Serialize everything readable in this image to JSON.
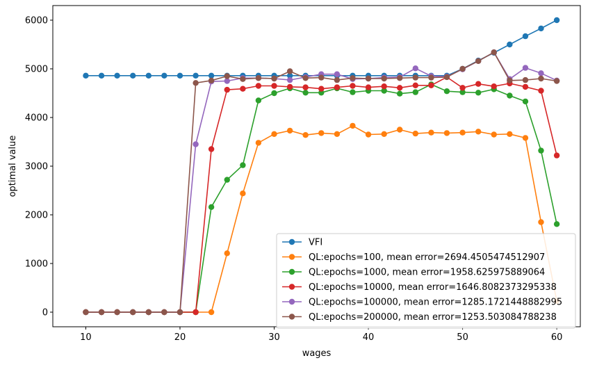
{
  "chart_data": {
    "type": "line",
    "xlabel": "wages",
    "ylabel": "optimal value",
    "xlim": [
      6.5,
      62.5
    ],
    "ylim": [
      -300,
      6300
    ],
    "xticks": [
      10,
      20,
      30,
      40,
      50,
      60
    ],
    "yticks": [
      0,
      1000,
      2000,
      3000,
      4000,
      5000,
      6000
    ],
    "grid": false,
    "legend_position": "lower-right",
    "x": [
      10,
      11.67,
      13.33,
      15,
      16.67,
      18.33,
      20,
      21.67,
      23.33,
      25,
      26.67,
      28.33,
      30,
      31.67,
      33.33,
      35,
      36.67,
      38.33,
      40,
      41.67,
      43.33,
      45,
      46.67,
      48.33,
      50,
      51.67,
      53.33,
      55,
      56.67,
      58.33,
      60
    ],
    "series": [
      {
        "name": "VFI",
        "color": "#1f77b4",
        "values": [
          4860,
          4860,
          4860,
          4860,
          4860,
          4860,
          4860,
          4860,
          4860,
          4860,
          4860,
          4860,
          4860,
          4860,
          4860,
          4860,
          4860,
          4860,
          4860,
          4860,
          4860,
          4860,
          4860,
          4860,
          5000,
          5170,
          5330,
          5500,
          5670,
          5830,
          6000
        ]
      },
      {
        "name": "QL:epochs=100, mean error=2694.4505474512907",
        "color": "#ff7f0e",
        "values": [
          0,
          0,
          0,
          0,
          0,
          0,
          0,
          0,
          0,
          1210,
          2440,
          3480,
          3660,
          3730,
          3640,
          3680,
          3660,
          3830,
          3650,
          3660,
          3750,
          3670,
          3690,
          3680,
          3690,
          3710,
          3650,
          3660,
          3580,
          1850,
          230
        ]
      },
      {
        "name": "QL:epochs=1000, mean error=1958.625975889064",
        "color": "#2ca02c",
        "values": [
          0,
          0,
          0,
          0,
          0,
          0,
          0,
          0,
          2160,
          2720,
          3020,
          4350,
          4500,
          4600,
          4510,
          4510,
          4600,
          4520,
          4550,
          4550,
          4490,
          4520,
          4680,
          4540,
          4520,
          4510,
          4580,
          4450,
          4330,
          3320,
          1810
        ]
      },
      {
        "name": "QL:epochs=10000, mean error=1646.8082373295338",
        "color": "#d62728",
        "values": [
          0,
          0,
          0,
          0,
          0,
          0,
          0,
          0,
          3350,
          4570,
          4590,
          4650,
          4650,
          4630,
          4620,
          4590,
          4620,
          4650,
          4620,
          4640,
          4610,
          4660,
          4660,
          4830,
          4610,
          4690,
          4640,
          4700,
          4630,
          4550,
          3220
        ]
      },
      {
        "name": "QL:epochs=100000, mean error=1285.1721448882995",
        "color": "#9467bd",
        "values": [
          0,
          0,
          0,
          0,
          0,
          0,
          0,
          3450,
          4740,
          4750,
          4810,
          4810,
          4800,
          4770,
          4830,
          4890,
          4890,
          4790,
          4800,
          4820,
          4830,
          5010,
          4850,
          4840,
          4990,
          5160,
          5340,
          4790,
          5020,
          4910,
          4760
        ]
      },
      {
        "name": "QL:epochs=200000, mean error=1253.503084788238",
        "color": "#8c564b",
        "values": [
          0,
          0,
          0,
          0,
          0,
          0,
          0,
          4710,
          4760,
          4850,
          4790,
          4810,
          4800,
          4950,
          4810,
          4820,
          4770,
          4810,
          4800,
          4800,
          4810,
          4820,
          4820,
          4830,
          5000,
          5160,
          5340,
          4760,
          4770,
          4800,
          4750
        ]
      }
    ]
  }
}
